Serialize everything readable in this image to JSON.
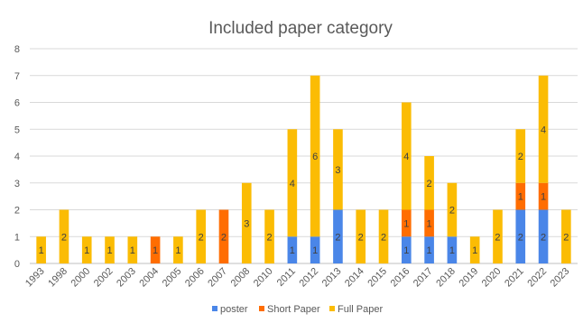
{
  "chart_data": {
    "type": "bar",
    "stacked": true,
    "title": "Included paper category",
    "xlabel": "",
    "ylabel": "",
    "ylim": [
      0,
      8
    ],
    "yticks": [
      0,
      1,
      2,
      3,
      4,
      5,
      6,
      7,
      8
    ],
    "grid": true,
    "legend_position": "bottom",
    "categories": [
      "1993",
      "1998",
      "2000",
      "2002",
      "2003",
      "2004",
      "2005",
      "2006",
      "2007",
      "2008",
      "2010",
      "2011",
      "2012",
      "2013",
      "2014",
      "2015",
      "2016",
      "2017",
      "2018",
      "2019",
      "2020",
      "2021",
      "2022",
      "2023"
    ],
    "series": [
      {
        "name": "poster",
        "color": "#4A86E8",
        "values": [
          0,
          0,
          0,
          0,
          0,
          0,
          0,
          0,
          0,
          0,
          0,
          1,
          1,
          2,
          0,
          0,
          1,
          1,
          1,
          0,
          0,
          2,
          2,
          0
        ]
      },
      {
        "name": "Short Paper",
        "color": "#FF6D01",
        "values": [
          0,
          0,
          0,
          0,
          0,
          1,
          0,
          0,
          2,
          0,
          0,
          0,
          0,
          0,
          0,
          0,
          1,
          1,
          0,
          0,
          0,
          1,
          1,
          0
        ]
      },
      {
        "name": "Full Paper",
        "color": "#FBBC04",
        "values": [
          1,
          2,
          1,
          1,
          1,
          0,
          1,
          2,
          0,
          3,
          2,
          4,
          6,
          3,
          2,
          2,
          4,
          2,
          2,
          1,
          2,
          2,
          4,
          2
        ]
      }
    ]
  }
}
